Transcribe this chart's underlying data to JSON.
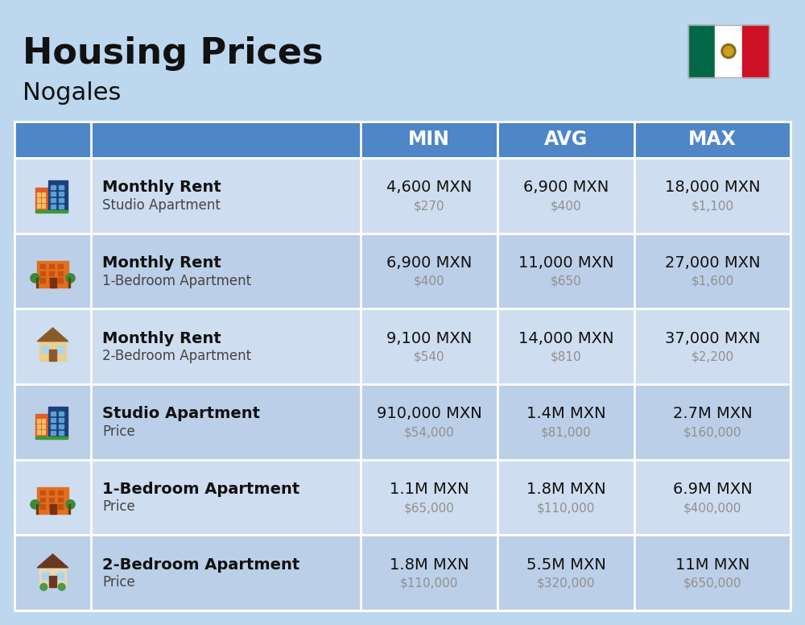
{
  "title": "Housing Prices",
  "subtitle": "Nogales",
  "bg_color": "#bdd7ee",
  "header_bg": "#4e86c8",
  "header_text": "#ffffff",
  "row_colors": [
    "#cfddf0",
    "#bccfe8"
  ],
  "col_headers": [
    "MIN",
    "AVG",
    "MAX"
  ],
  "rows": [
    {
      "bold_label": "Monthly Rent",
      "sub_label": "Studio Apartment",
      "icon_type": "city_blue",
      "min_main": "4,600 MXN",
      "min_sub": "$270",
      "avg_main": "6,900 MXN",
      "avg_sub": "$400",
      "max_main": "18,000 MXN",
      "max_sub": "$1,100"
    },
    {
      "bold_label": "Monthly Rent",
      "sub_label": "1-Bedroom Apartment",
      "icon_type": "apt_orange",
      "min_main": "6,900 MXN",
      "min_sub": "$400",
      "avg_main": "11,000 MXN",
      "avg_sub": "$650",
      "max_main": "27,000 MXN",
      "max_sub": "$1,600"
    },
    {
      "bold_label": "Monthly Rent",
      "sub_label": "2-Bedroom Apartment",
      "icon_type": "house_tan",
      "min_main": "9,100 MXN",
      "min_sub": "$540",
      "avg_main": "14,000 MXN",
      "avg_sub": "$810",
      "max_main": "37,000 MXN",
      "max_sub": "$2,200"
    },
    {
      "bold_label": "Studio Apartment",
      "sub_label": "Price",
      "icon_type": "city_blue",
      "min_main": "910,000 MXN",
      "min_sub": "$54,000",
      "avg_main": "1.4M MXN",
      "avg_sub": "$81,000",
      "max_main": "2.7M MXN",
      "max_sub": "$160,000"
    },
    {
      "bold_label": "1-Bedroom Apartment",
      "sub_label": "Price",
      "icon_type": "apt_orange",
      "min_main": "1.1M MXN",
      "min_sub": "$65,000",
      "avg_main": "1.8M MXN",
      "avg_sub": "$110,000",
      "max_main": "6.9M MXN",
      "max_sub": "$400,000"
    },
    {
      "bold_label": "2-Bedroom Apartment",
      "sub_label": "Price",
      "icon_type": "house_brown",
      "min_main": "1.8M MXN",
      "min_sub": "$110,000",
      "avg_main": "5.5M MXN",
      "avg_sub": "$320,000",
      "max_main": "11M MXN",
      "max_sub": "$650,000"
    }
  ]
}
